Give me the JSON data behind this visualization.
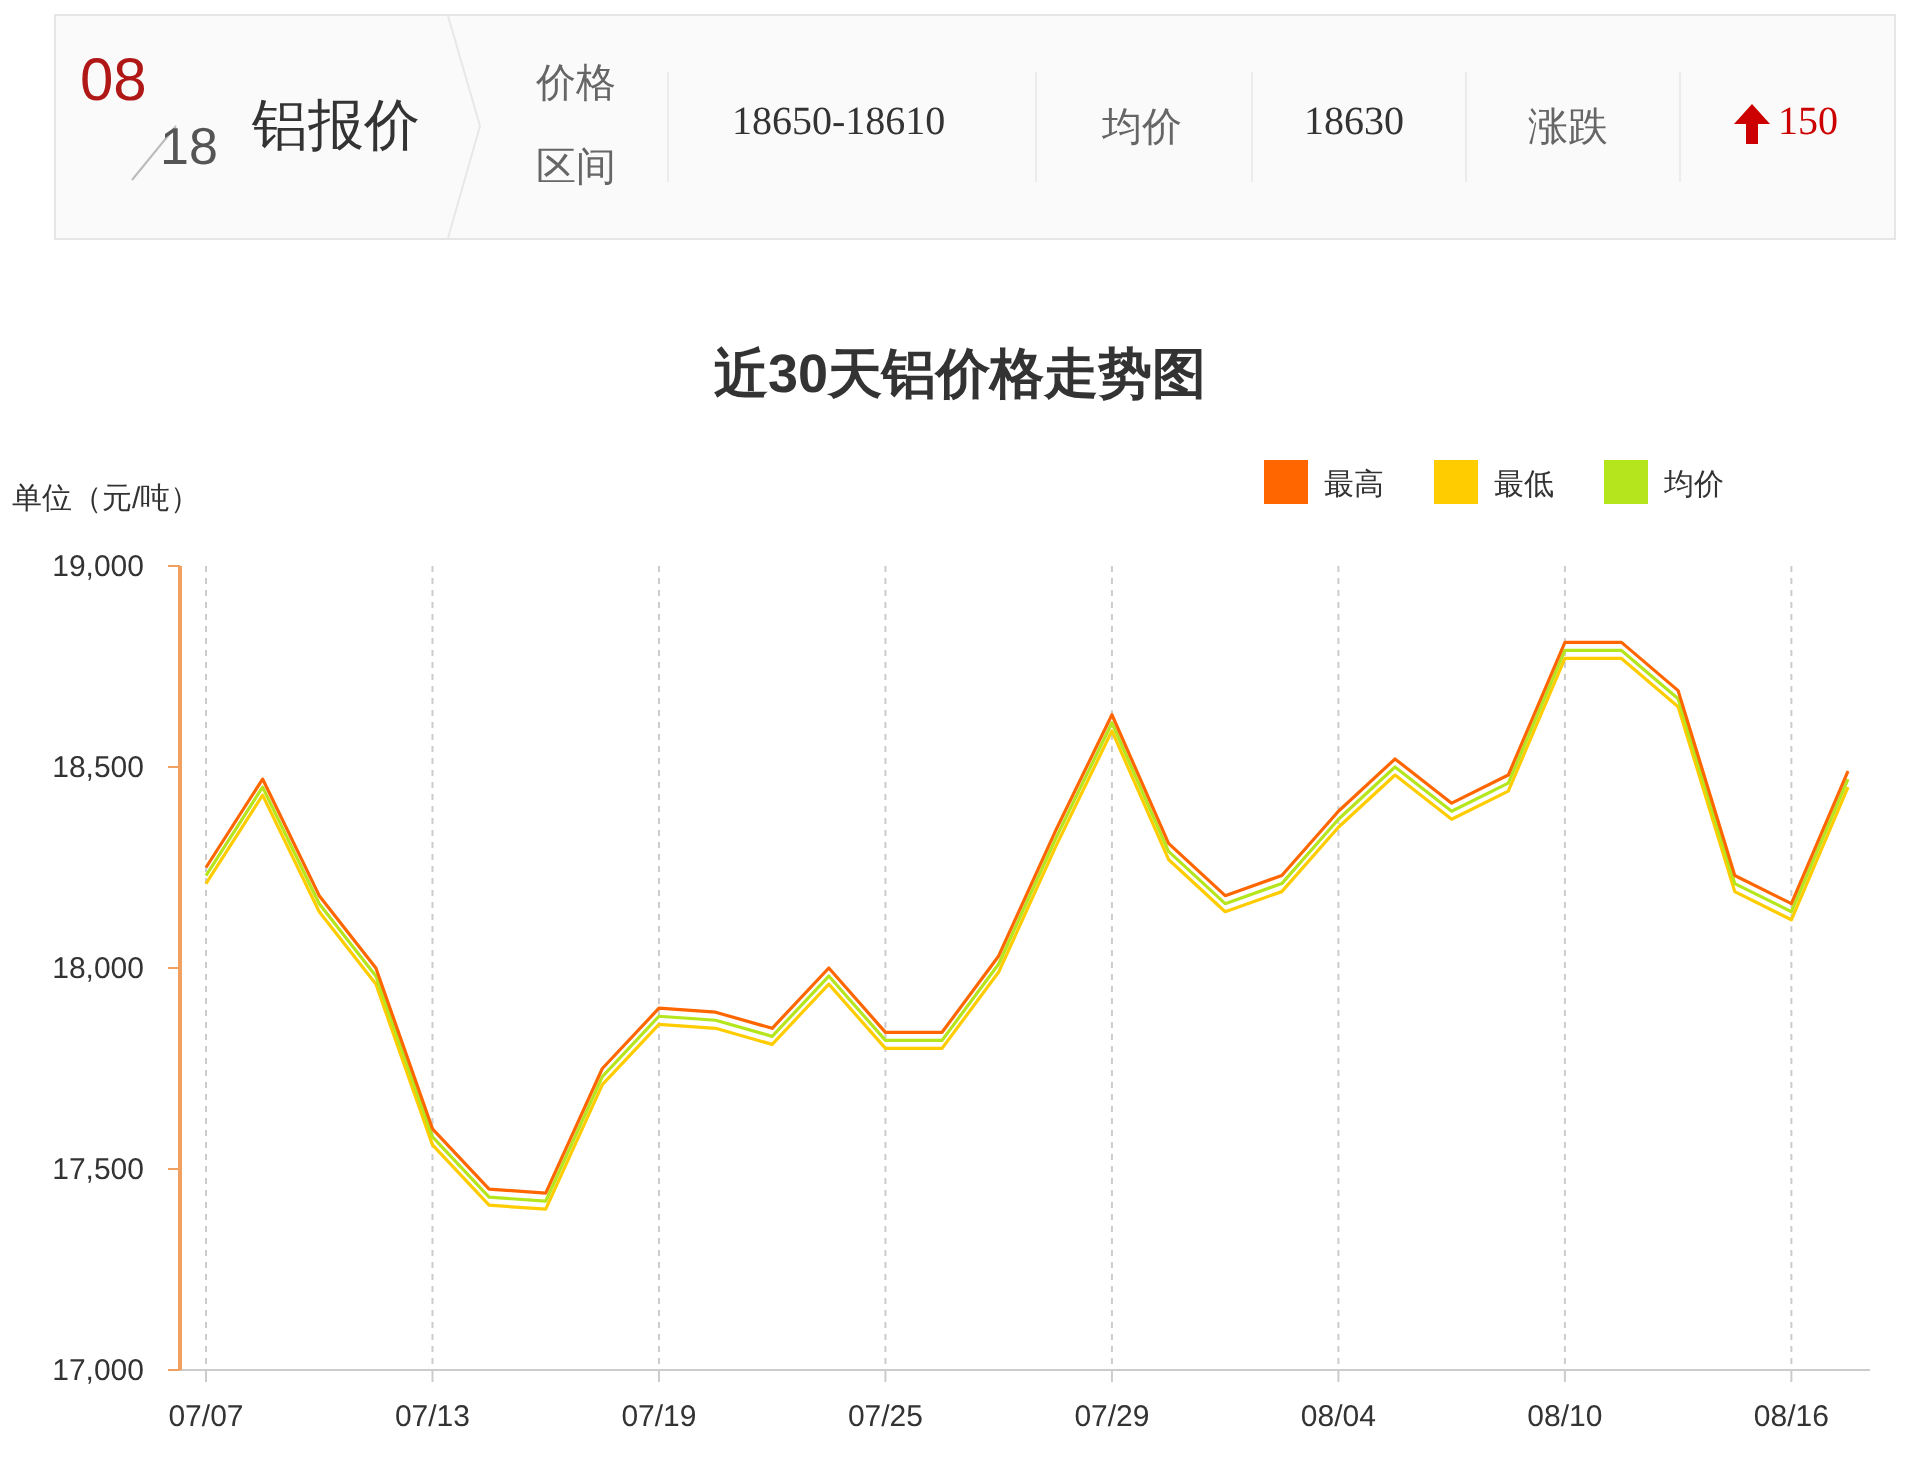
{
  "chart_data": [
    {
      "type": "other",
      "title": "铝报价",
      "annotations": [
        "08",
        "18",
        "价格",
        "区间",
        "18650-18610",
        "均价",
        "18630",
        "涨跌",
        "150"
      ]
    },
    {
      "type": "line",
      "title": "近30天铝价格走势图",
      "ylabel": "单位（元/吨）",
      "categories": [
        "07/07",
        null,
        null,
        null,
        "07/13",
        null,
        null,
        null,
        "07/19",
        null,
        null,
        null,
        "07/25",
        null,
        null,
        null,
        "07/29",
        null,
        null,
        null,
        "08/04",
        null,
        null,
        null,
        "08/10",
        null,
        null,
        null,
        "08/16",
        null
      ],
      "series": [
        {
          "name": "最高",
          "color": "#ff6600",
          "values": [
            18250,
            18470,
            18180,
            18000,
            17600,
            17450,
            17440,
            17750,
            17900,
            17890,
            17850,
            18000,
            17840,
            17840,
            18030,
            18340,
            18630,
            18310,
            18180,
            18230,
            18390,
            18520,
            18410,
            18480,
            18810,
            18810,
            18690,
            18230,
            18160,
            18490
          ]
        },
        {
          "name": "最低",
          "color": "#ffcc00",
          "values": [
            18210,
            18430,
            18140,
            17960,
            17560,
            17410,
            17400,
            17710,
            17860,
            17850,
            17810,
            17960,
            17800,
            17800,
            17990,
            18300,
            18590,
            18270,
            18140,
            18190,
            18350,
            18480,
            18370,
            18440,
            18770,
            18770,
            18650,
            18190,
            18120,
            18450
          ]
        },
        {
          "name": "均价",
          "color": "#b5e61d",
          "values": [
            18230,
            18450,
            18160,
            17980,
            17580,
            17430,
            17420,
            17730,
            17880,
            17870,
            17830,
            17980,
            17820,
            17820,
            18010,
            18320,
            18610,
            18290,
            18160,
            18210,
            18370,
            18500,
            18390,
            18460,
            18790,
            18790,
            18670,
            18210,
            18140,
            18470
          ]
        }
      ],
      "ylim": [
        17000,
        19000
      ],
      "yticks": [
        {
          "value": 17000,
          "label": "17,000"
        },
        {
          "value": 17500,
          "label": "17,500"
        },
        {
          "value": 18000,
          "label": "18,000"
        },
        {
          "value": 18500,
          "label": "18,500"
        },
        {
          "value": 19000,
          "label": "19,000"
        }
      ],
      "grid": "x",
      "legend": "top right"
    }
  ]
}
